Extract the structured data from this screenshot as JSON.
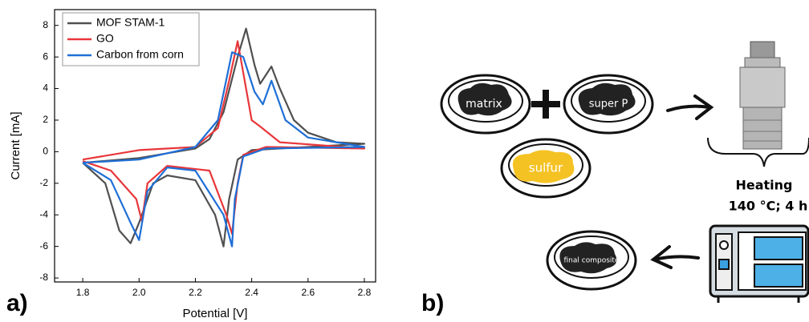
{
  "chart_data": {
    "type": "line",
    "xlabel": "Potential [V]",
    "ylabel": "Current [mA]",
    "xlim": [
      1.7,
      2.84
    ],
    "ylim": [
      -8.25,
      9
    ],
    "xticks": [
      1.8,
      {
        "value": 2,
        "label": "2.0"
      },
      2.2,
      2.4,
      2.6,
      2.8
    ],
    "yticks": [
      -8,
      -6,
      -4,
      -2,
      0,
      2,
      4,
      6,
      8
    ],
    "legend": "top-left",
    "series": [
      {
        "name": "MOF STAM-1",
        "color": "#505050",
        "x": [
          1.8,
          2.0,
          2.2,
          2.25,
          2.3,
          2.35,
          2.38,
          2.41,
          2.43,
          2.47,
          2.5,
          2.55,
          2.6,
          2.7,
          2.8,
          2.5,
          2.4,
          2.35,
          2.32,
          2.3,
          2.27,
          2.2,
          2.1,
          2.05,
          2.0,
          1.97,
          1.93,
          1.88,
          1.8
        ],
        "values": [
          -0.7,
          -0.4,
          0.2,
          0.8,
          2.5,
          6,
          7.8,
          5.5,
          4.3,
          5.4,
          4,
          2,
          1.2,
          0.6,
          0.5,
          0.2,
          0.1,
          -0.5,
          -3,
          -6,
          -4,
          -1.8,
          -1.5,
          -2,
          -4.5,
          -5.8,
          -5,
          -2,
          -0.7
        ]
      },
      {
        "name": "GO",
        "color": "#e8363a",
        "x": [
          1.8,
          2.0,
          2.2,
          2.28,
          2.32,
          2.35,
          2.37,
          2.4,
          2.43,
          2.5,
          2.8,
          2.45,
          2.37,
          2.35,
          2.33,
          2.31,
          2.25,
          2.1,
          2.03,
          2.01,
          1.99,
          1.9,
          1.8
        ],
        "values": [
          -0.5,
          0.1,
          0.3,
          1.5,
          4.5,
          7,
          5,
          2,
          1.6,
          0.6,
          0.2,
          0.3,
          -0.2,
          -2,
          -5.2,
          -4,
          -1.2,
          -0.9,
          -2,
          -4.4,
          -3,
          -1.2,
          -0.6
        ]
      },
      {
        "name": "Carbon from corn",
        "color": "#1f6fd6",
        "x": [
          1.8,
          2.0,
          2.2,
          2.28,
          2.33,
          2.37,
          2.41,
          2.44,
          2.47,
          2.52,
          2.6,
          2.8,
          2.45,
          2.37,
          2.34,
          2.33,
          2.3,
          2.2,
          2.1,
          2.03,
          2.0,
          1.97,
          1.9,
          1.8
        ],
        "values": [
          -0.7,
          -0.5,
          0.3,
          2,
          6.3,
          6,
          3.8,
          3,
          4.5,
          2,
          0.9,
          0.3,
          0.2,
          -0.3,
          -3,
          -6,
          -4,
          -1.2,
          -1,
          -2.5,
          -5.6,
          -4.5,
          -1.8,
          -0.7
        ]
      }
    ]
  },
  "panels": [
    "a)",
    "b)"
  ],
  "diagram": {
    "dishes": [
      "matrix",
      "super P",
      "sulfur",
      "final composite"
    ],
    "step": "Heating",
    "conditions": "140 °C; 4 h"
  }
}
